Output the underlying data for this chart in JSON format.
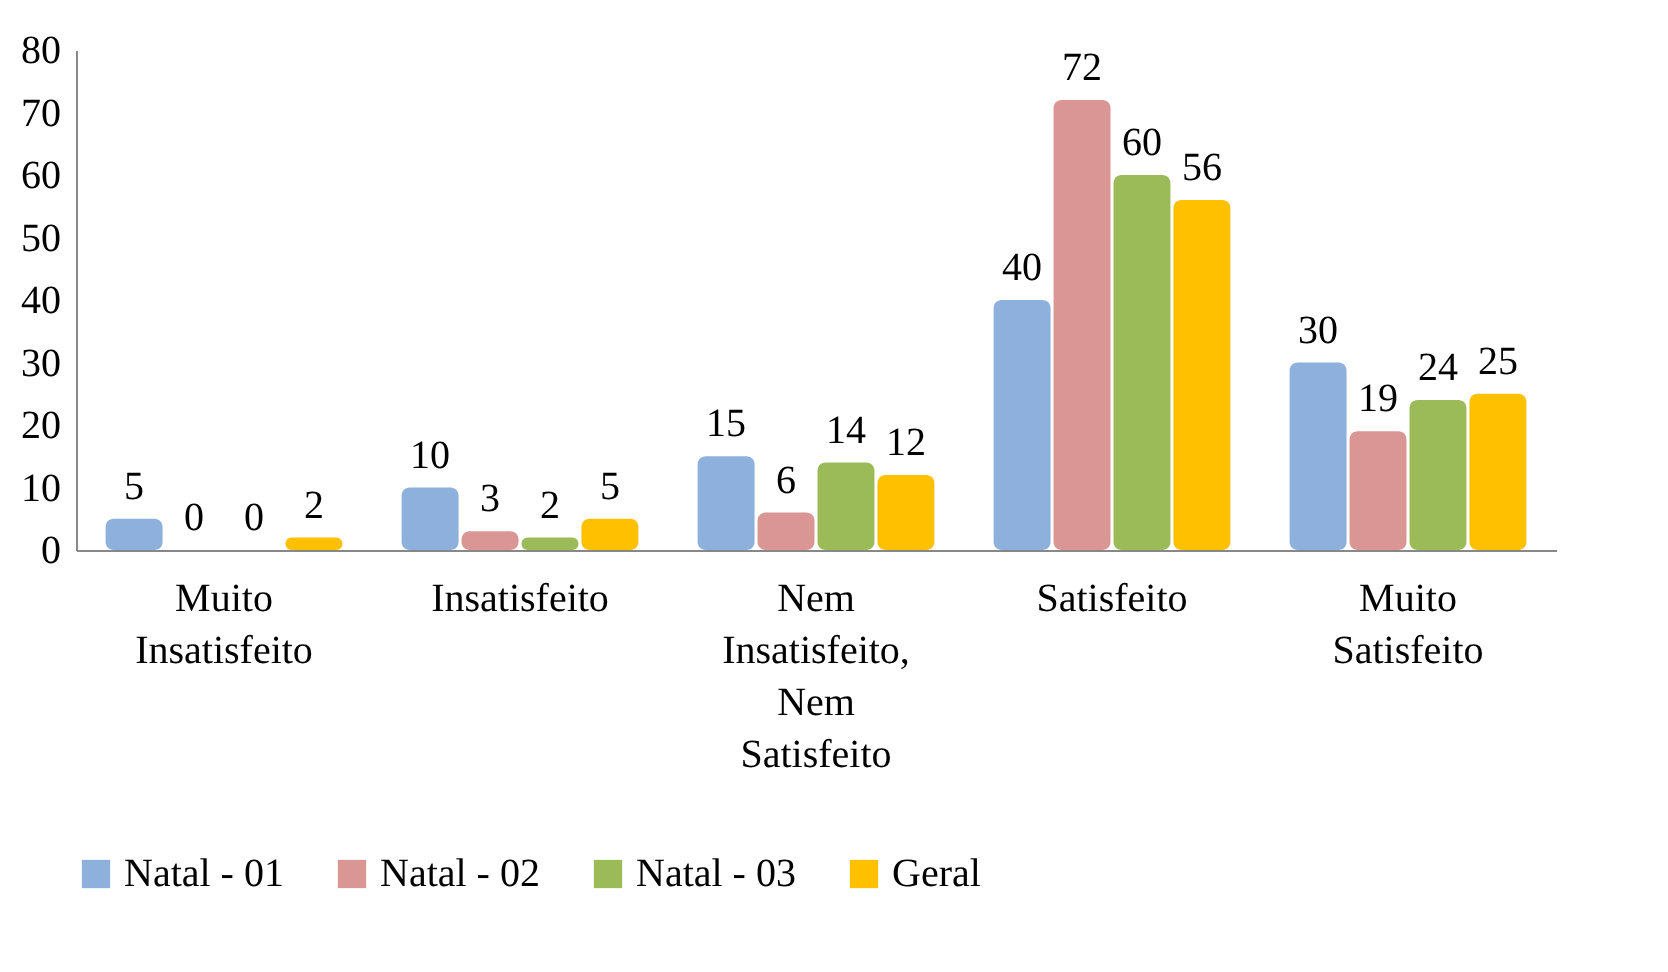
{
  "chart_data": {
    "type": "bar",
    "categories": [
      "Muito Insatisfeito",
      "Insatisfeito",
      "Nem Insatisfeito, Nem Satisfeito",
      "Satisfeito",
      "Muito Satisfeito"
    ],
    "series": [
      {
        "name": "Natal - 01",
        "color": "#8eb0dc",
        "values": [
          5,
          10,
          15,
          40,
          30
        ]
      },
      {
        "name": "Natal - 02",
        "color": "#da9694",
        "values": [
          0,
          3,
          6,
          72,
          19
        ]
      },
      {
        "name": "Natal - 03",
        "color": "#9bbb59",
        "values": [
          0,
          2,
          14,
          60,
          24
        ]
      },
      {
        "name": "Geral",
        "color": "#ffc000",
        "values": [
          2,
          5,
          12,
          56,
          25
        ]
      }
    ],
    "ylim": [
      0,
      80
    ],
    "yticks": [
      0,
      10,
      20,
      30,
      40,
      50,
      60,
      70,
      80
    ],
    "grid": false,
    "legend": "bottom",
    "data_labels": true
  }
}
